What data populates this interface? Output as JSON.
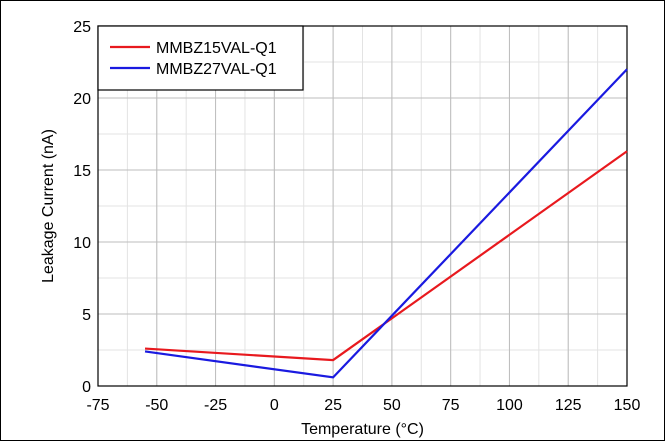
{
  "chart_data": {
    "type": "line",
    "xlabel": "Temperature (°C)",
    "ylabel": "Leakage Current (nA)",
    "xlim": [
      -75,
      150
    ],
    "ylim": [
      0,
      25
    ],
    "x_ticks": [
      -75,
      -50,
      -25,
      0,
      25,
      50,
      75,
      100,
      125,
      150
    ],
    "y_ticks": [
      0,
      5,
      10,
      15,
      20,
      25
    ],
    "x_minor_step": 12.5,
    "y_minor_step": 2.5,
    "grid": true,
    "legend_position": "top-left",
    "series": [
      {
        "name": "MMBZ15VAL-Q1",
        "color": "#e8191e",
        "x": [
          -55,
          25,
          150
        ],
        "y": [
          2.6,
          1.8,
          16.3
        ]
      },
      {
        "name": "MMBZ27VAL-Q1",
        "color": "#1a1ae0",
        "x": [
          -55,
          25,
          150
        ],
        "y": [
          2.4,
          0.6,
          22.0
        ]
      }
    ]
  }
}
